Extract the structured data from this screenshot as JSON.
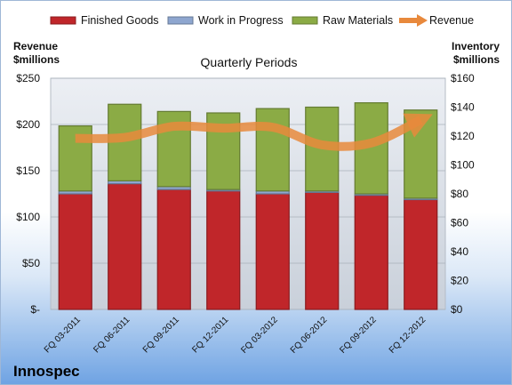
{
  "company": "Innospec",
  "chart_data": {
    "type": "bar",
    "stacked": true,
    "title": "Quarterly Periods",
    "categories": [
      "FQ 03-2011",
      "FQ 06-2011",
      "FQ 09-2011",
      "FQ 12-2011",
      "FQ 03-2012",
      "FQ 06-2012",
      "FQ 09-2012",
      "FQ 12-2012"
    ],
    "left_axis": {
      "label_line1": "Revenue",
      "label_line2": "$millions",
      "range": [
        0,
        250
      ],
      "ticks": [
        0,
        50,
        100,
        150,
        200,
        250
      ],
      "tick_labels": [
        "$-",
        "$50",
        "$100",
        "$150",
        "$200",
        "$250"
      ]
    },
    "right_axis": {
      "label_line1": "Inventory",
      "label_line2": "$millions",
      "range": [
        0,
        160
      ],
      "ticks": [
        0,
        20,
        40,
        60,
        80,
        100,
        120,
        140,
        160
      ],
      "tick_labels": [
        "$0",
        "$20",
        "$40",
        "$60",
        "$80",
        "$100",
        "$120",
        "$140",
        "$160"
      ]
    },
    "legend_position": "top",
    "series": [
      {
        "name": "Finished Goods",
        "axis": "right",
        "kind": "bar",
        "color": "#c0262a",
        "values": [
          80,
          87,
          83,
          82,
          80,
          81,
          79,
          76
        ]
      },
      {
        "name": "Work in Progress",
        "axis": "right",
        "kind": "bar",
        "color": "#8ea6cf",
        "values": [
          2,
          2,
          2,
          1,
          2,
          1,
          1,
          1
        ]
      },
      {
        "name": "Raw Materials",
        "axis": "right",
        "kind": "bar",
        "color": "#8bab45",
        "values": [
          45,
          53,
          52,
          53,
          57,
          58,
          63,
          61
        ]
      },
      {
        "name": "Revenue",
        "axis": "left",
        "kind": "line",
        "color": "#e8893c",
        "values": [
          185,
          186,
          198,
          196,
          197,
          178,
          180,
          205
        ]
      }
    ]
  }
}
